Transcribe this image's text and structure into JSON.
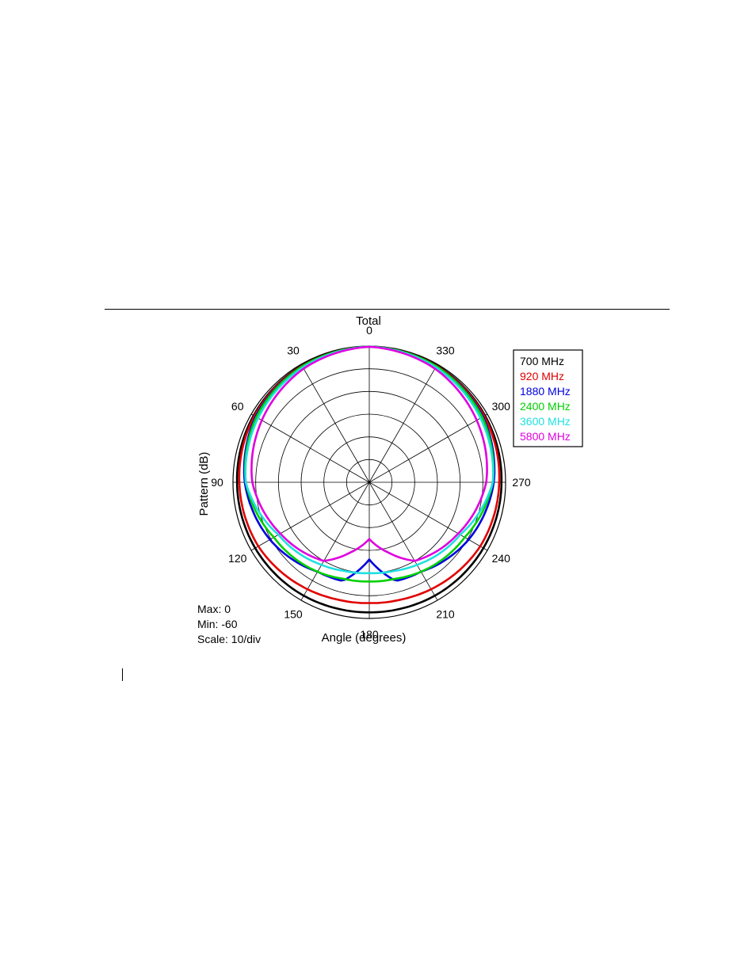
{
  "chart_data": {
    "type": "polar-line",
    "title": "Total",
    "xlabel": "Angle (degrees)",
    "ylabel": "Pattern (dB)",
    "angle_ticks": [
      "0",
      "30",
      "60",
      "90",
      "120",
      "150",
      "180",
      "210",
      "240",
      "270",
      "300",
      "330"
    ],
    "radial_range_db": [
      -60,
      0
    ],
    "stats": {
      "max": "Max: 0",
      "min": "Min: -60",
      "scale": "Scale: 10/div"
    },
    "legend_position": "top-right",
    "angles_deg": [
      0,
      30,
      60,
      90,
      120,
      150,
      165,
      180,
      195,
      210,
      240,
      270,
      300,
      330
    ],
    "series": [
      {
        "name": "700 MHz",
        "color": "#000000",
        "values_db": [
          -0.3,
          -0.6,
          -1.2,
          -1.8,
          -2.0,
          -2.3,
          -2.6,
          -2.7,
          -2.6,
          -2.3,
          -2.0,
          -1.8,
          -1.2,
          -0.6
        ]
      },
      {
        "name": "920 MHz",
        "color": "#e00000",
        "values_db": [
          -0.3,
          -0.8,
          -1.6,
          -2.8,
          -3.6,
          -5.6,
          -6.5,
          -6.8,
          -6.5,
          -5.6,
          -3.6,
          -2.8,
          -1.6,
          -0.8
        ]
      },
      {
        "name": "1880 MHz",
        "color": "#0000e0",
        "values_db": [
          -0.3,
          -1.0,
          -2.2,
          -5.2,
          -9.5,
          -14.5,
          -15.0,
          -26.0,
          -15.0,
          -14.5,
          -9.5,
          -5.2,
          -2.2,
          -1.0
        ]
      },
      {
        "name": "2400 MHz",
        "color": "#00d000",
        "values_db": [
          -0.3,
          -1.0,
          -2.6,
          -5.6,
          -11.5,
          -14.5,
          -16.0,
          -16.3,
          -16.0,
          -14.5,
          -11.5,
          -5.6,
          -2.6,
          -1.0
        ]
      },
      {
        "name": "3600 MHz",
        "color": "#20e0e0",
        "values_db": [
          -0.3,
          -1.5,
          -3.5,
          -5.6,
          -13.8,
          -18.0,
          -19.5,
          -20.0,
          -19.5,
          -18.0,
          -13.8,
          -5.6,
          -3.5,
          -1.5
        ]
      },
      {
        "name": "5800 MHz",
        "color": "#e000e0",
        "values_db": [
          -0.3,
          -2.2,
          -5.4,
          -8.5,
          -14.8,
          -20.0,
          -28.0,
          -35.0,
          -28.0,
          -20.0,
          -14.8,
          -8.5,
          -5.4,
          -2.2
        ]
      }
    ]
  }
}
